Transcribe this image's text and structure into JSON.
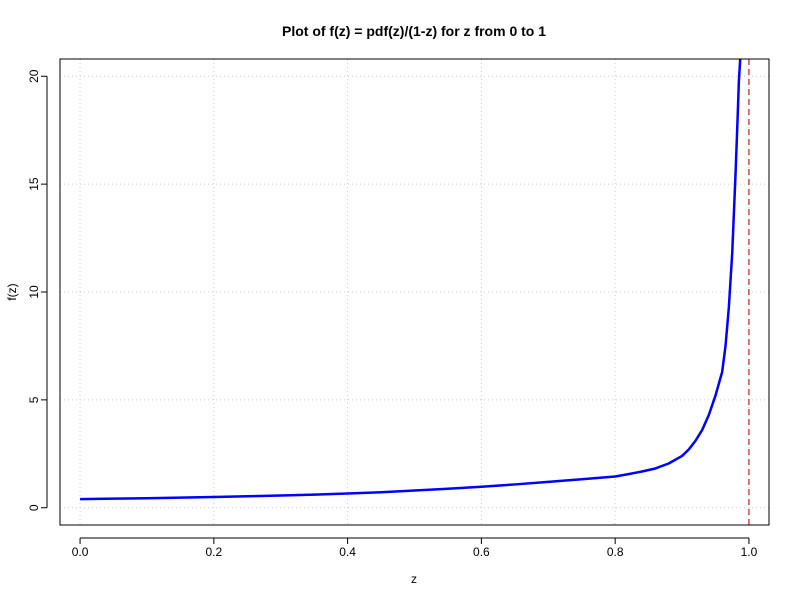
{
  "chart_data": {
    "type": "line",
    "title": "Plot of f(z) = pdf(z)/(1-z) for z from 0 to 1",
    "xlabel": "z",
    "ylabel": "f(z)",
    "xlim": [
      -0.03,
      1.03
    ],
    "ylim": [
      -0.8,
      20.8
    ],
    "x_ticks": [
      0.0,
      0.2,
      0.4,
      0.6,
      0.8,
      1.0
    ],
    "x_tick_labels": [
      "0.0",
      "0.2",
      "0.4",
      "0.6",
      "0.8",
      "1.0"
    ],
    "y_ticks": [
      0,
      5,
      10,
      15,
      20
    ],
    "y_tick_labels": [
      "0",
      "5",
      "10",
      "15",
      "20"
    ],
    "grid": true,
    "series": [
      {
        "color": "#0000ff",
        "x": [
          0.0,
          0.05,
          0.1,
          0.15,
          0.2,
          0.25,
          0.3,
          0.35,
          0.4,
          0.45,
          0.5,
          0.55,
          0.6,
          0.65,
          0.7,
          0.75,
          0.8,
          0.82,
          0.84,
          0.86,
          0.88,
          0.9,
          0.91,
          0.92,
          0.93,
          0.94,
          0.95,
          0.96,
          0.965,
          0.97,
          0.975,
          0.98,
          0.983,
          0.985,
          0.987
        ],
        "y": [
          0.4,
          0.42,
          0.44,
          0.47,
          0.5,
          0.53,
          0.57,
          0.61,
          0.66,
          0.72,
          0.8,
          0.88,
          0.97,
          1.08,
          1.2,
          1.32,
          1.45,
          1.56,
          1.68,
          1.82,
          2.05,
          2.4,
          2.7,
          3.1,
          3.6,
          4.3,
          5.2,
          6.3,
          7.5,
          9.3,
          11.8,
          15.5,
          18.0,
          19.8,
          20.8
        ]
      }
    ],
    "vline": {
      "x": 1.0,
      "color": "#b22222",
      "style": "dashed"
    }
  }
}
